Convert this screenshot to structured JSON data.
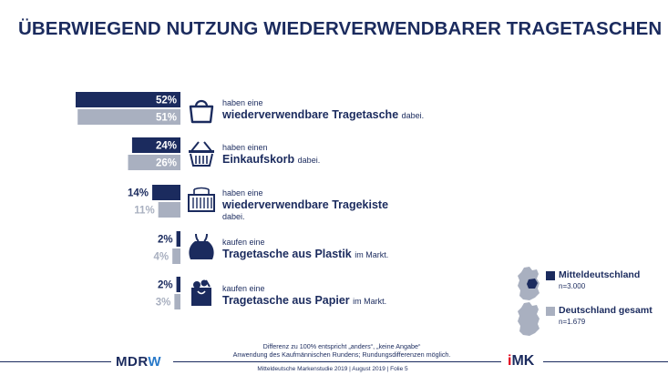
{
  "title": "ÜBERWIEGEND NUTZUNG WIEDERVERWENDBARER TRAGETASCHEN",
  "colors": {
    "dark": "#1b2b5e",
    "light": "#a9b0c0"
  },
  "chart_data": {
    "type": "bar",
    "orientation": "horizontal",
    "title": "ÜBERWIEGEND NUTZUNG WIEDERVERWENDBARER TRAGETASCHEN",
    "categories": [
      "haben eine wiederverwendbare Tragetasche dabei.",
      "haben einen Einkaufskorb dabei.",
      "haben eine wiederverwendbare Tragekiste dabei.",
      "kaufen eine Tragetasche aus Plastik im Markt.",
      "kaufen eine Tragetasche aus Papier im Markt."
    ],
    "series": [
      {
        "name": "Mitteldeutschland",
        "n": "n=3.000",
        "color": "#1b2b5e",
        "values": [
          52,
          24,
          14,
          2,
          2
        ],
        "labels": [
          "52%",
          "24%",
          "14%",
          "2%",
          "2%"
        ]
      },
      {
        "name": "Deutschland gesamt",
        "n": "n=1.679",
        "color": "#a9b0c0",
        "values": [
          51,
          26,
          11,
          4,
          3
        ],
        "labels": [
          "51%",
          "26%",
          "11%",
          "4%",
          "3%"
        ]
      }
    ],
    "xlim": [
      0,
      52
    ],
    "legend_position": "bottom-right",
    "grid": false
  },
  "rows": [
    {
      "line1": "haben eine",
      "line2": "wiederverwendbare Tragetasche",
      "tail": "dabei.",
      "icon": "tote-bag-icon"
    },
    {
      "line1": "haben einen",
      "line2": "Einkaufskorb",
      "tail": "dabei.",
      "icon": "shopping-basket-icon"
    },
    {
      "line1": "haben eine",
      "line2": "wiederverwendbare Tragekiste",
      "tail": "dabei.",
      "icon": "crate-icon"
    },
    {
      "line1": "kaufen eine",
      "line2": "Tragetasche aus Plastik",
      "tail": "im Markt.",
      "icon": "plastic-bag-icon"
    },
    {
      "line1": "kaufen eine",
      "line2": "Tragetasche aus Papier",
      "tail": "im Markt.",
      "icon": "paper-bag-icon"
    }
  ],
  "legend": {
    "md_label": "Mitteldeutschland",
    "md_n": "n=3.000",
    "de_label": "Deutschland gesamt",
    "de_n": "n=1.679"
  },
  "footnote": {
    "line1": "Differenz zu 100% entspricht „anders“, „keine Angabe“",
    "line2": "Anwendung des Kaufmännischen Rundens; Rundungsdifferenzen möglich."
  },
  "footer": "Mitteldeutsche Markenstudie 2019 | August 2019 | Folie 5",
  "logos": {
    "mdr_main": "MDR",
    "mdr_w": "W",
    "imk_i": "i",
    "imk_rest": "MK"
  }
}
